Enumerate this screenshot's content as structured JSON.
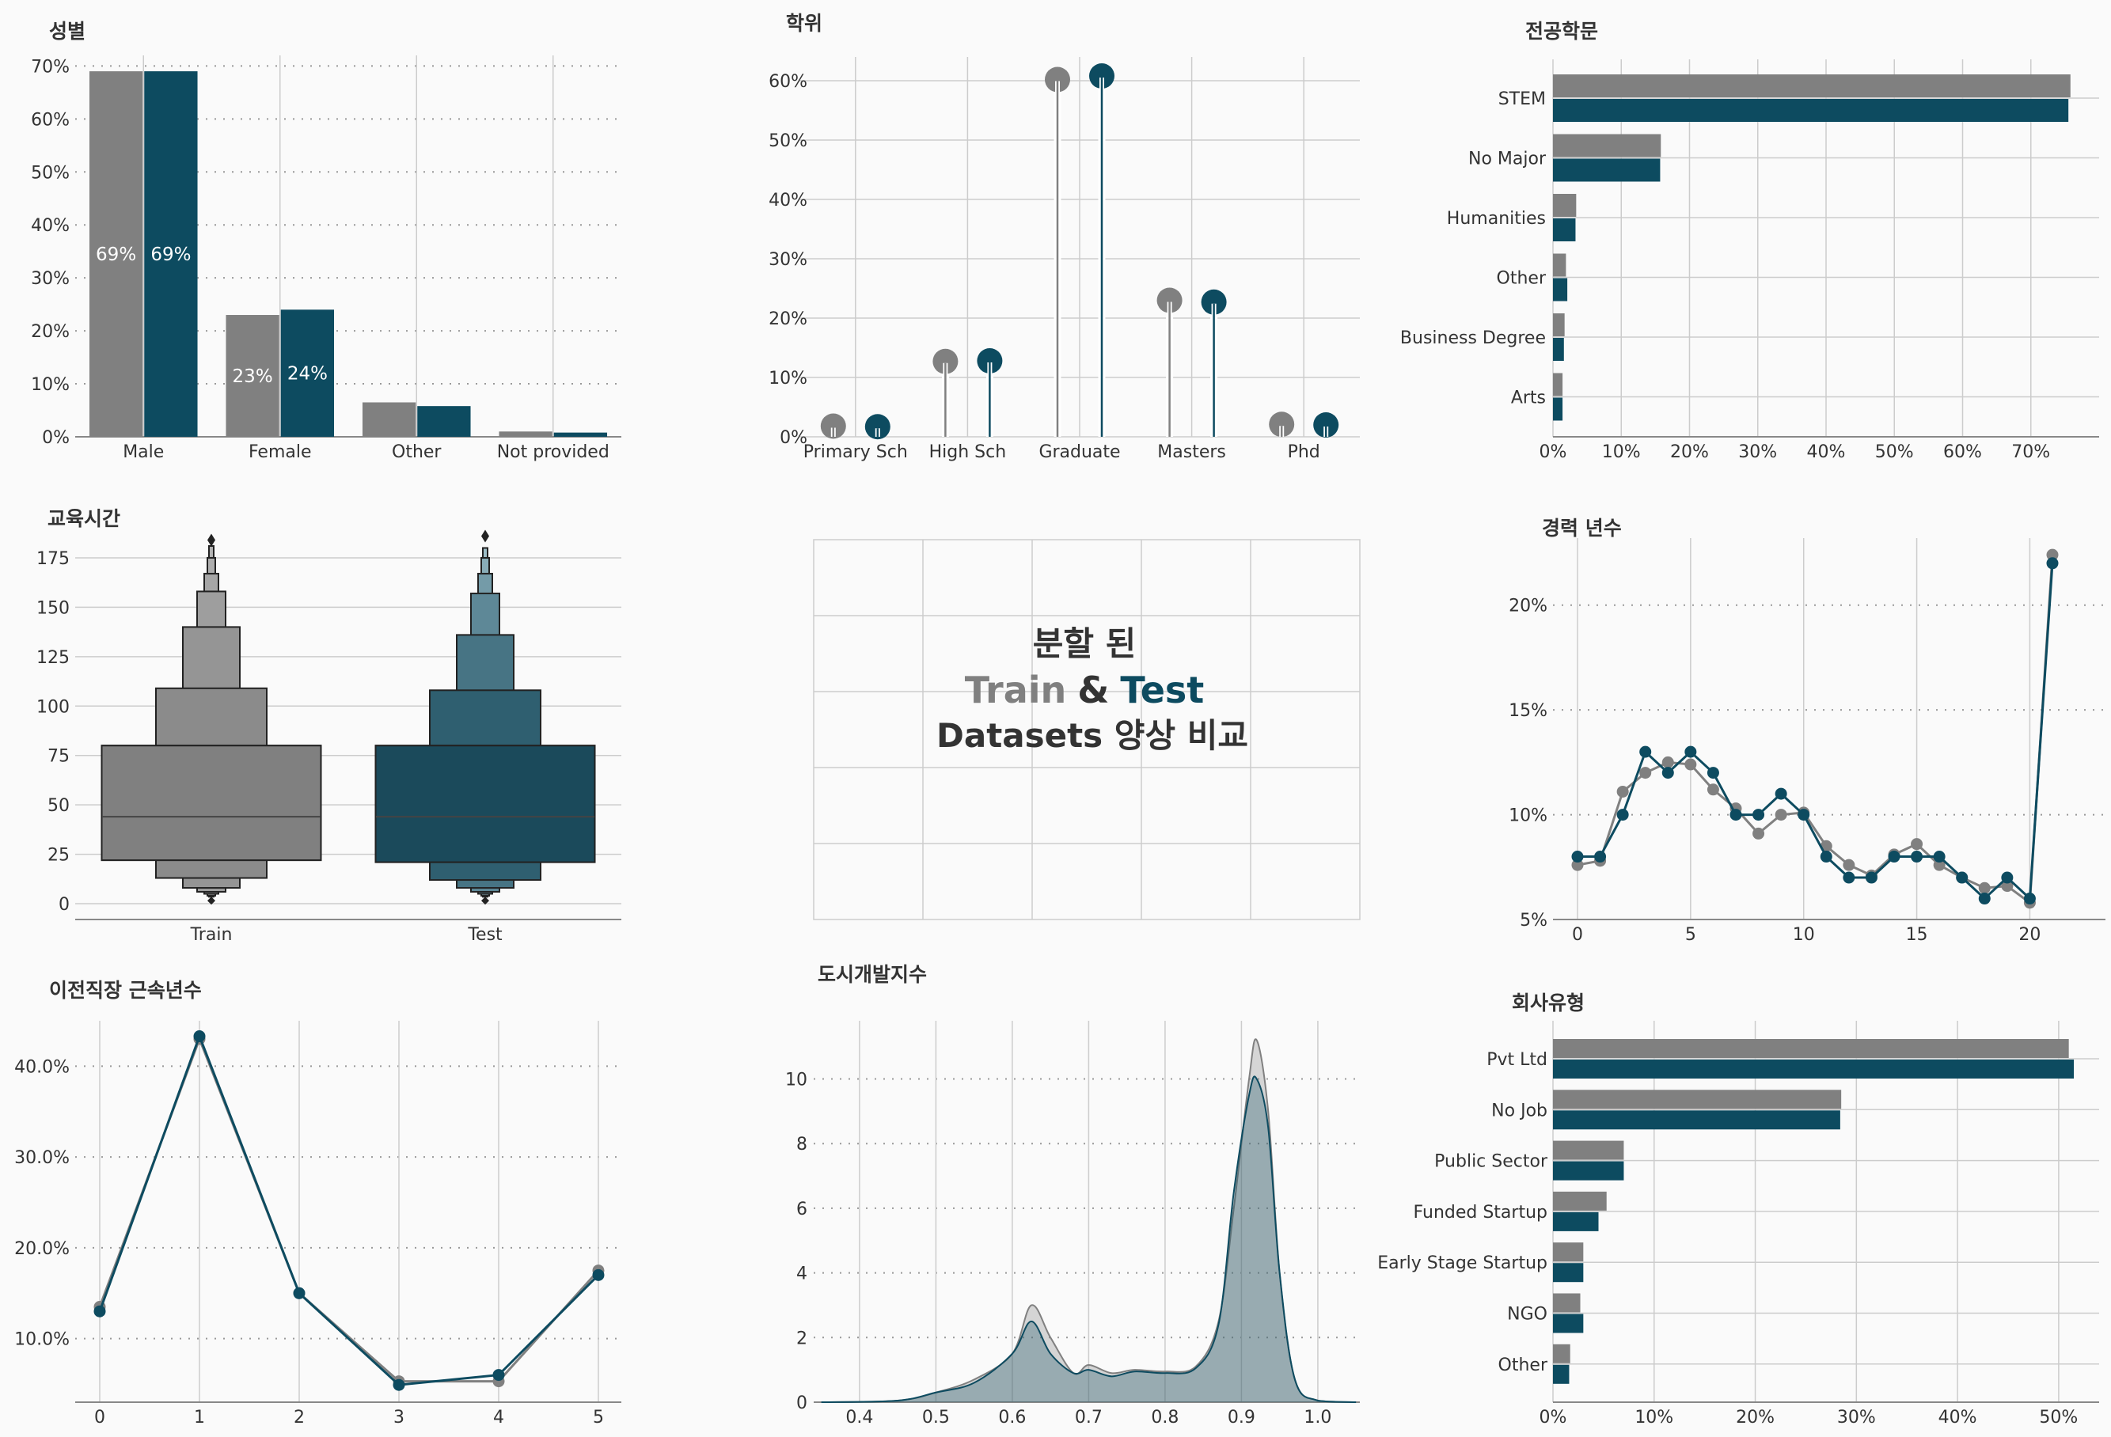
{
  "colors": {
    "train": "#808080",
    "test": "#0d4b60",
    "grid": "#cccccc",
    "text": "#333333",
    "bg": "#fafafa"
  },
  "center": {
    "line1": "분할 된",
    "train_word": "Train",
    "amp": "&",
    "test_word": "Test",
    "line3": "Datasets 양상 비교"
  },
  "chart_data": [
    {
      "id": "gender",
      "type": "bar",
      "title": "성별",
      "categories": [
        "Male",
        "Female",
        "Other",
        "Not provided"
      ],
      "series": [
        {
          "values": [
            69,
            23,
            6.5,
            1.0
          ]
        },
        {
          "values": [
            69,
            24,
            5.8,
            0.8
          ]
        }
      ],
      "data_labels": [
        [
          "69%",
          "69%"
        ],
        [
          "23%",
          "24%"
        ]
      ],
      "yticks": [
        "0%",
        "10%",
        "20%",
        "30%",
        "40%",
        "50%",
        "60%",
        "70%"
      ],
      "ylim": [
        0,
        72
      ]
    },
    {
      "id": "education",
      "type": "scatter",
      "subtype": "lollipop",
      "title": "학위",
      "categories": [
        "Primary Sch",
        "High Sch",
        "Graduate",
        "Masters",
        "Phd"
      ],
      "series": [
        {
          "values": [
            1.8,
            12.7,
            60.2,
            23.0,
            2.1
          ]
        },
        {
          "values": [
            1.7,
            12.8,
            60.8,
            22.7,
            2.0
          ]
        }
      ],
      "yticks": [
        "0%",
        "10%",
        "20%",
        "30%",
        "40%",
        "50%",
        "60%"
      ],
      "ylim": [
        0,
        64
      ]
    },
    {
      "id": "major",
      "type": "bar",
      "orientation": "horizontal",
      "title": "전공학문",
      "categories": [
        "STEM",
        "No Major",
        "Humanities",
        "Other",
        "Business Degree",
        "Arts"
      ],
      "series": [
        {
          "values": [
            75.8,
            15.8,
            3.4,
            1.9,
            1.7,
            1.4
          ]
        },
        {
          "values": [
            75.5,
            15.7,
            3.3,
            2.1,
            1.6,
            1.4
          ]
        }
      ],
      "xticks": [
        "0%",
        "10%",
        "20%",
        "30%",
        "40%",
        "50%",
        "60%",
        "70%"
      ],
      "xlim": [
        0,
        80
      ]
    },
    {
      "id": "training",
      "type": "boxen",
      "title": "교육시간",
      "categories": [
        "Train",
        "Test"
      ],
      "yticks": [
        "0",
        "25",
        "50",
        "75",
        "100",
        "125",
        "150",
        "175"
      ],
      "ylim": [
        -8,
        185
      ],
      "boxes": [
        {
          "median": 44,
          "levels": [
            [
              22,
              80
            ],
            [
              13,
              109
            ],
            [
              8,
              140
            ],
            [
              6,
              158
            ],
            [
              5,
              167
            ],
            [
              4,
              175
            ],
            [
              3.5,
              181
            ]
          ],
          "outliers": [
            184
          ]
        },
        {
          "median": 44,
          "levels": [
            [
              21,
              80
            ],
            [
              12,
              108
            ],
            [
              8,
              136
            ],
            [
              6,
              157
            ],
            [
              5,
              167
            ],
            [
              4,
              175
            ],
            [
              3.5,
              180
            ]
          ],
          "outliers": [
            186
          ]
        }
      ]
    },
    {
      "id": "experience",
      "type": "line",
      "title": "경력 년수",
      "x": [
        0,
        1,
        2,
        3,
        4,
        5,
        6,
        7,
        8,
        9,
        10,
        11,
        12,
        13,
        14,
        15,
        16,
        17,
        18,
        19,
        20,
        21
      ],
      "series": [
        {
          "values": [
            7.6,
            7.8,
            11.1,
            12.0,
            12.5,
            12.4,
            11.2,
            10.3,
            9.1,
            10.0,
            10.1,
            8.5,
            7.6,
            7.1,
            8.1,
            8.6,
            7.6,
            7.0,
            6.5,
            6.6,
            5.8,
            22.4
          ]
        },
        {
          "values": [
            8.0,
            8.0,
            10.0,
            13.0,
            12.0,
            13.0,
            12.0,
            10.0,
            10.0,
            11.0,
            10.0,
            8.0,
            7.0,
            7.0,
            8.0,
            8.0,
            8.0,
            7.0,
            6.0,
            7.0,
            6.0,
            22.0
          ]
        }
      ],
      "xticks": [
        "0",
        "5",
        "10",
        "15",
        "20"
      ],
      "yticks": [
        "5%",
        "10%",
        "15%",
        "20%"
      ],
      "ylim": [
        5,
        23.2
      ]
    },
    {
      "id": "last_job",
      "type": "line",
      "title": "이전직장 근속년수",
      "x": [
        0,
        1,
        2,
        3,
        4,
        5
      ],
      "series": [
        {
          "values": [
            13.5,
            43.0,
            15.0,
            5.3,
            5.3,
            17.5
          ]
        },
        {
          "values": [
            13.0,
            43.3,
            15.0,
            4.9,
            6.0,
            17.0
          ]
        }
      ],
      "xticks": [
        "0",
        "1",
        "2",
        "3",
        "4",
        "5"
      ],
      "yticks": [
        "10.0%",
        "20.0%",
        "30.0%",
        "40.0%"
      ],
      "ylim": [
        3,
        45
      ]
    },
    {
      "id": "city_index",
      "type": "area",
      "subtype": "kde",
      "title": "도시개발지수",
      "x": [
        0.35,
        0.45,
        0.5,
        0.55,
        0.6,
        0.625,
        0.65,
        0.68,
        0.7,
        0.73,
        0.76,
        0.8,
        0.84,
        0.87,
        0.89,
        0.91,
        0.92,
        0.935,
        0.95,
        0.97,
        1.0,
        1.05
      ],
      "series": [
        {
          "values": [
            0,
            0.05,
            0.3,
            0.7,
            1.5,
            3.0,
            2.0,
            0.9,
            1.15,
            0.9,
            1.0,
            0.95,
            1.1,
            2.5,
            6.0,
            10.0,
            11.2,
            9.0,
            4.0,
            0.7,
            0.05,
            0
          ]
        },
        {
          "values": [
            0,
            0.05,
            0.3,
            0.6,
            1.5,
            2.5,
            1.5,
            0.9,
            1.0,
            0.8,
            0.95,
            0.9,
            1.05,
            2.4,
            6.5,
            9.5,
            10.0,
            8.5,
            4.0,
            0.7,
            0.05,
            0
          ]
        }
      ],
      "xticks": [
        "0.4",
        "0.5",
        "0.6",
        "0.7",
        "0.8",
        "0.9",
        "1.0"
      ],
      "yticks": [
        "0",
        "2",
        "4",
        "6",
        "8",
        "10"
      ],
      "xlim": [
        0.34,
        1.055
      ],
      "ylim": [
        0,
        11.8
      ]
    },
    {
      "id": "company_type",
      "type": "bar",
      "orientation": "horizontal",
      "title": "회사유형",
      "categories": [
        "Pvt Ltd",
        "No Job",
        "Public Sector",
        "Funded Startup",
        "Early Stage Startup",
        "NGO",
        "Other"
      ],
      "series": [
        {
          "values": [
            51.0,
            28.5,
            7.0,
            5.3,
            3.0,
            2.7,
            1.7
          ]
        },
        {
          "values": [
            51.5,
            28.4,
            7.0,
            4.5,
            3.0,
            3.0,
            1.6
          ]
        }
      ],
      "xticks": [
        "0%",
        "10%",
        "20%",
        "30%",
        "40%",
        "50%"
      ],
      "xlim": [
        0,
        54
      ]
    }
  ]
}
